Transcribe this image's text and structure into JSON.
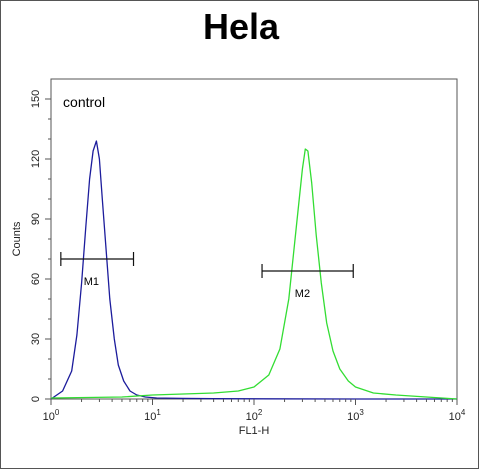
{
  "chart_data": {
    "type": "line",
    "title": "Hela",
    "xlabel": "FL1-H",
    "ylabel": "Counts",
    "x_scale": "log",
    "xlim": [
      1,
      10000
    ],
    "ylim": [
      0,
      160
    ],
    "x_ticks": [
      {
        "value": 1,
        "base": "10",
        "exp": "0"
      },
      {
        "value": 10,
        "base": "10",
        "exp": "1"
      },
      {
        "value": 100,
        "base": "10",
        "exp": "2"
      },
      {
        "value": 1000,
        "base": "10",
        "exp": "3"
      },
      {
        "value": 10000,
        "base": "10",
        "exp": "4"
      }
    ],
    "y_ticks": [
      0,
      30,
      60,
      90,
      120,
      150
    ],
    "grid": false,
    "series": [
      {
        "name": "control",
        "color": "#1c1c9c",
        "x": [
          1.0,
          1.3,
          1.6,
          1.8,
          2.0,
          2.2,
          2.4,
          2.6,
          2.8,
          3.0,
          3.2,
          3.5,
          3.8,
          4.2,
          4.6,
          5.2,
          6.0,
          7.0,
          8.5,
          11,
          20,
          40,
          100,
          1000,
          10000
        ],
        "y": [
          0,
          4,
          14,
          32,
          58,
          86,
          110,
          124,
          129,
          120,
          100,
          74,
          50,
          30,
          17,
          9,
          4,
          2,
          1,
          0.5,
          0.3,
          0.2,
          0.1,
          0,
          0
        ]
      },
      {
        "color": "#33dd33",
        "x": [
          1.0,
          5,
          10,
          20,
          40,
          70,
          100,
          140,
          180,
          220,
          260,
          300,
          320,
          340,
          370,
          410,
          460,
          520,
          600,
          700,
          850,
          1000,
          1500,
          2500,
          5000,
          10000
        ],
        "y": [
          0.5,
          1,
          2,
          2.5,
          3,
          4,
          6,
          12,
          25,
          50,
          85,
          115,
          125,
          124,
          108,
          82,
          58,
          38,
          24,
          15,
          9,
          6,
          3,
          2,
          1,
          0
        ]
      }
    ],
    "annotations": [
      {
        "text": "control",
        "x": 1.2,
        "y": 146
      }
    ],
    "markers": [
      {
        "label": "M1",
        "x_start": 1.25,
        "x_end": 6.5,
        "y": 70,
        "label_x": 2.5
      },
      {
        "label": "M2",
        "x_start": 120,
        "x_end": 950,
        "y": 64,
        "label_x": 300
      }
    ]
  }
}
